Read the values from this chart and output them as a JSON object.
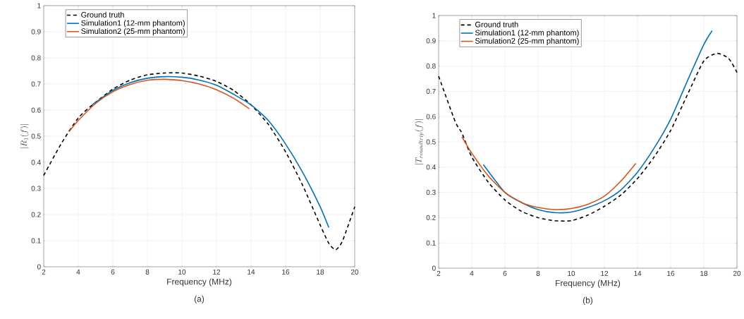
{
  "chart_data": [
    {
      "type": "line",
      "xlabel": "Frequency (MHz)",
      "ylabel": "|R_{1}(f)|",
      "annotations": [
        "(a)"
      ],
      "xlim": [
        2,
        20
      ],
      "ylim": [
        0,
        1
      ],
      "xticks": [
        2,
        4,
        6,
        8,
        10,
        12,
        14,
        16,
        18,
        20
      ],
      "yticks": [
        0,
        0.1,
        0.2,
        0.3,
        0.4,
        0.5,
        0.6,
        0.7,
        0.8,
        0.9,
        1
      ],
      "grid": true,
      "legend": "top left",
      "series": [
        {
          "name": "Ground truth",
          "color": "#000000",
          "line_style": "dashed",
          "x": [
            2,
            3,
            4,
            5,
            6,
            7,
            8,
            9,
            10,
            11,
            12,
            13,
            14,
            15,
            16,
            17,
            18,
            18.5,
            18.9,
            19.3,
            20
          ],
          "values": [
            0.35,
            0.47,
            0.57,
            0.63,
            0.68,
            0.715,
            0.735,
            0.742,
            0.742,
            0.73,
            0.71,
            0.675,
            0.62,
            0.545,
            0.44,
            0.31,
            0.16,
            0.09,
            0.065,
            0.1,
            0.23
          ]
        },
        {
          "name": "Simulation1 (12-mm phantom)",
          "color": "#0072bd",
          "line_style": "solid",
          "x": [
            4.8,
            6,
            7,
            8,
            9,
            10,
            11,
            12,
            13,
            14,
            15,
            16,
            17,
            18,
            18.5
          ],
          "values": [
            0.62,
            0.675,
            0.705,
            0.722,
            0.728,
            0.726,
            0.715,
            0.695,
            0.66,
            0.62,
            0.56,
            0.47,
            0.36,
            0.23,
            0.15
          ]
        },
        {
          "name": "Simulation2 (25-mm phantom)",
          "color": "#d95319",
          "line_style": "solid",
          "x": [
            3.5,
            4,
            5,
            6,
            7,
            8,
            9,
            10,
            11,
            12,
            13,
            13.9
          ],
          "values": [
            0.52,
            0.56,
            0.625,
            0.67,
            0.698,
            0.714,
            0.718,
            0.713,
            0.7,
            0.678,
            0.645,
            0.605
          ]
        }
      ]
    },
    {
      "type": "line",
      "xlabel": "Frequency (MHz)",
      "ylabel": "|T_{roundtrip}(f)|",
      "annotations": [
        "(b)"
      ],
      "xlim": [
        2,
        20
      ],
      "ylim": [
        0,
        1
      ],
      "xticks": [
        2,
        4,
        6,
        8,
        10,
        12,
        14,
        16,
        18,
        20
      ],
      "yticks": [
        0,
        0.1,
        0.2,
        0.3,
        0.4,
        0.5,
        0.6,
        0.7,
        0.8,
        0.9,
        1
      ],
      "grid": true,
      "legend": "top left",
      "series": [
        {
          "name": "Ground truth",
          "color": "#000000",
          "line_style": "dashed",
          "x": [
            2,
            3,
            3.4,
            4,
            5,
            6,
            7,
            8,
            9,
            10,
            11,
            12,
            13,
            14,
            15,
            16,
            17,
            18,
            18.8,
            19.5,
            20
          ],
          "values": [
            0.76,
            0.58,
            0.535,
            0.44,
            0.34,
            0.27,
            0.225,
            0.2,
            0.188,
            0.188,
            0.21,
            0.245,
            0.29,
            0.355,
            0.44,
            0.545,
            0.685,
            0.82,
            0.85,
            0.83,
            0.775
          ]
        },
        {
          "name": "Simulation1 (12-mm phantom)",
          "color": "#0072bd",
          "line_style": "solid",
          "x": [
            4.7,
            6,
            7,
            8,
            9,
            10,
            11,
            12,
            13,
            14,
            15,
            16,
            17,
            18,
            18.5
          ],
          "values": [
            0.41,
            0.3,
            0.26,
            0.232,
            0.22,
            0.222,
            0.24,
            0.267,
            0.31,
            0.38,
            0.475,
            0.59,
            0.74,
            0.885,
            0.94
          ]
        },
        {
          "name": "Simulation2 (25-mm phantom)",
          "color": "#d95319",
          "line_style": "solid",
          "x": [
            3.4,
            4,
            5,
            6,
            7,
            8,
            9,
            10,
            11,
            12,
            13,
            13.9
          ],
          "values": [
            0.52,
            0.455,
            0.365,
            0.3,
            0.26,
            0.24,
            0.232,
            0.236,
            0.253,
            0.285,
            0.345,
            0.415
          ]
        }
      ]
    }
  ]
}
